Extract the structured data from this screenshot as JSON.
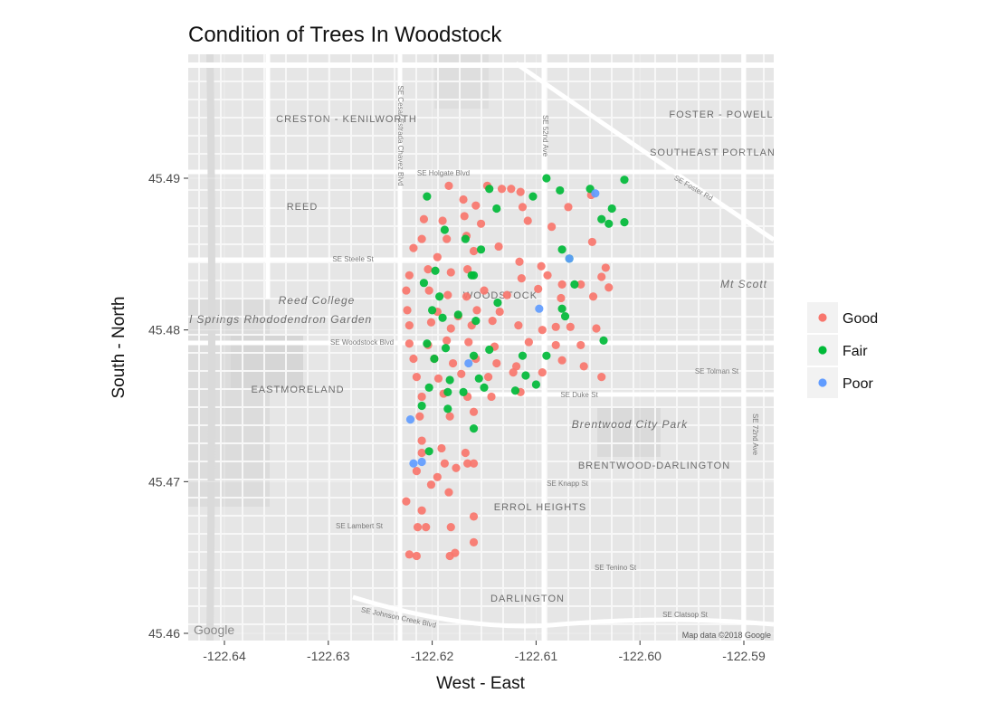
{
  "chart_data": {
    "type": "scatter",
    "title": "Condition of Trees In Woodstock",
    "xlabel": "West - East",
    "ylabel": "South - North",
    "xlim": [
      -122.64,
      -122.59
    ],
    "ylim": [
      45.46,
      45.4995
    ],
    "x_ticks": [
      "-122.64",
      "-122.63",
      "-122.62",
      "-122.61",
      "-122.60",
      "-122.59"
    ],
    "y_ticks": [
      "45.46",
      "45.47",
      "45.48",
      "45.49"
    ],
    "grid": true,
    "legend_position": "right",
    "background": "map",
    "map_attribution": "Map data ©2018 Google",
    "map_logo": "Google",
    "map_labels": {
      "neighborhoods": [
        "CRESTON - KENILWORTH",
        "FOSTER - POWELL",
        "SOUTHEAST PORTLAND",
        "REED",
        "WOODSTOCK",
        "EASTMORELAND",
        "BRENTWOOD-DARLINGTON",
        "ERROL HEIGHTS",
        "DARLINGTON"
      ],
      "places": [
        "Reed College",
        "Crystal Springs Rhododendron Garden",
        "Brentwood City Park",
        "Mt Scott"
      ],
      "streets": [
        "SE Holgate Blvd",
        "SE Steele St",
        "SE Woodstock Blvd",
        "SE Duke St",
        "SE Foster Rd",
        "SE Tolman St",
        "SE Knapp St",
        "SE Lambert St",
        "SE Tenino St",
        "SE Clatsop St",
        "SE Johnson Creek Blvd",
        "SE Cesar Estrada Chavez Blvd",
        "SE 52nd Ave",
        "SE 72nd Ave"
      ]
    },
    "series": [
      {
        "name": "Good",
        "color": "#F8766D",
        "points": [
          [
            -122.6184,
            45.4895
          ],
          [
            -122.6147,
            45.4895
          ],
          [
            -122.6133,
            45.4893
          ],
          [
            -122.6124,
            45.4893
          ],
          [
            -122.6115,
            45.4891
          ],
          [
            -122.617,
            45.4886
          ],
          [
            -122.6158,
            45.4882
          ],
          [
            -122.6113,
            45.4881
          ],
          [
            -122.6069,
            45.4881
          ],
          [
            -122.6047,
            45.4889
          ],
          [
            -122.6208,
            45.4873
          ],
          [
            -122.619,
            45.4872
          ],
          [
            -122.6169,
            45.4875
          ],
          [
            -122.6153,
            45.487
          ],
          [
            -122.6108,
            45.4872
          ],
          [
            -122.6085,
            45.4868
          ],
          [
            -122.6046,
            45.4858
          ],
          [
            -122.621,
            45.486
          ],
          [
            -122.6186,
            45.486
          ],
          [
            -122.6167,
            45.4862
          ],
          [
            -122.6136,
            45.4855
          ],
          [
            -122.6218,
            45.4854
          ],
          [
            -122.6195,
            45.4848
          ],
          [
            -122.616,
            45.4852
          ],
          [
            -122.6116,
            45.4845
          ],
          [
            -122.6095,
            45.4842
          ],
          [
            -122.6222,
            45.4836
          ],
          [
            -122.6204,
            45.484
          ],
          [
            -122.6182,
            45.4838
          ],
          [
            -122.6166,
            45.484
          ],
          [
            -122.6114,
            45.4834
          ],
          [
            -122.6089,
            45.4836
          ],
          [
            -122.6075,
            45.483
          ],
          [
            -122.6057,
            45.483
          ],
          [
            -122.6033,
            45.4841
          ],
          [
            -122.6037,
            45.4835
          ],
          [
            -122.603,
            45.4828
          ],
          [
            -122.6045,
            45.4822
          ],
          [
            -122.6225,
            45.4826
          ],
          [
            -122.6203,
            45.4826
          ],
          [
            -122.6185,
            45.4823
          ],
          [
            -122.6167,
            45.4822
          ],
          [
            -122.615,
            45.4826
          ],
          [
            -122.6128,
            45.4823
          ],
          [
            -122.6098,
            45.4827
          ],
          [
            -122.6076,
            45.4821
          ],
          [
            -122.6224,
            45.4813
          ],
          [
            -122.6195,
            45.4812
          ],
          [
            -122.6175,
            45.4809
          ],
          [
            -122.6157,
            45.4813
          ],
          [
            -122.6135,
            45.4812
          ],
          [
            -122.6222,
            45.4803
          ],
          [
            -122.6201,
            45.4805
          ],
          [
            -122.6182,
            45.4801
          ],
          [
            -122.6162,
            45.4803
          ],
          [
            -122.6142,
            45.4806
          ],
          [
            -122.6117,
            45.4803
          ],
          [
            -122.6094,
            45.48
          ],
          [
            -122.6081,
            45.4802
          ],
          [
            -122.6067,
            45.4802
          ],
          [
            -122.6042,
            45.4801
          ],
          [
            -122.6222,
            45.4791
          ],
          [
            -122.6204,
            45.479
          ],
          [
            -122.6186,
            45.4793
          ],
          [
            -122.6165,
            45.4792
          ],
          [
            -122.614,
            45.4789
          ],
          [
            -122.6107,
            45.4792
          ],
          [
            -122.6081,
            45.479
          ],
          [
            -122.6057,
            45.479
          ],
          [
            -122.6218,
            45.4781
          ],
          [
            -122.6198,
            45.4781
          ],
          [
            -122.618,
            45.4778
          ],
          [
            -122.6158,
            45.4781
          ],
          [
            -122.6138,
            45.4778
          ],
          [
            -122.6119,
            45.4776
          ],
          [
            -122.6075,
            45.478
          ],
          [
            -122.6054,
            45.4776
          ],
          [
            -122.6215,
            45.4769
          ],
          [
            -122.6194,
            45.4768
          ],
          [
            -122.6172,
            45.4771
          ],
          [
            -122.6146,
            45.4769
          ],
          [
            -122.6122,
            45.4772
          ],
          [
            -122.6094,
            45.4772
          ],
          [
            -122.6037,
            45.4769
          ],
          [
            -122.621,
            45.4756
          ],
          [
            -122.6189,
            45.4758
          ],
          [
            -122.6166,
            45.4756
          ],
          [
            -122.6143,
            45.4756
          ],
          [
            -122.6115,
            45.4759
          ],
          [
            -122.6212,
            45.4743
          ],
          [
            -122.6183,
            45.4743
          ],
          [
            -122.616,
            45.4746
          ],
          [
            -122.621,
            45.4727
          ],
          [
            -122.6191,
            45.4722
          ],
          [
            -122.6168,
            45.4719
          ],
          [
            -122.621,
            45.4719
          ],
          [
            -122.6188,
            45.4712
          ],
          [
            -122.6166,
            45.4712
          ],
          [
            -122.6215,
            45.4707
          ],
          [
            -122.6195,
            45.4703
          ],
          [
            -122.6177,
            45.4709
          ],
          [
            -122.616,
            45.4712
          ],
          [
            -122.6201,
            45.4698
          ],
          [
            -122.6184,
            45.4693
          ],
          [
            -122.6225,
            45.4687
          ],
          [
            -122.621,
            45.4681
          ],
          [
            -122.616,
            45.4677
          ],
          [
            -122.6182,
            45.467
          ],
          [
            -122.6214,
            45.467
          ],
          [
            -122.6206,
            45.467
          ],
          [
            -122.6222,
            45.4652
          ],
          [
            -122.6215,
            45.4651
          ],
          [
            -122.6183,
            45.4651
          ],
          [
            -122.6178,
            45.4653
          ],
          [
            -122.616,
            45.466
          ]
        ]
      },
      {
        "name": "Fair",
        "color": "#00BA38",
        "points": [
          [
            -122.6205,
            45.4888
          ],
          [
            -122.6145,
            45.4893
          ],
          [
            -122.6103,
            45.4888
          ],
          [
            -122.609,
            45.49
          ],
          [
            -122.6077,
            45.4892
          ],
          [
            -122.6048,
            45.4893
          ],
          [
            -122.6015,
            45.4899
          ],
          [
            -122.6027,
            45.488
          ],
          [
            -122.603,
            45.487
          ],
          [
            -122.6037,
            45.4873
          ],
          [
            -122.6015,
            45.4871
          ],
          [
            -122.6138,
            45.488
          ],
          [
            -122.6188,
            45.4866
          ],
          [
            -122.6168,
            45.486
          ],
          [
            -122.6153,
            45.4853
          ],
          [
            -122.6075,
            45.4853
          ],
          [
            -122.6068,
            45.4847
          ],
          [
            -122.6197,
            45.4839
          ],
          [
            -122.616,
            45.4836
          ],
          [
            -122.6162,
            45.4836
          ],
          [
            -122.6063,
            45.483
          ],
          [
            -122.6208,
            45.4831
          ],
          [
            -122.6193,
            45.4822
          ],
          [
            -122.6137,
            45.4818
          ],
          [
            -122.6175,
            45.481
          ],
          [
            -122.6158,
            45.4806
          ],
          [
            -122.62,
            45.4813
          ],
          [
            -122.619,
            45.4808
          ],
          [
            -122.6075,
            45.4814
          ],
          [
            -122.6072,
            45.4809
          ],
          [
            -122.6205,
            45.4791
          ],
          [
            -122.6187,
            45.4788
          ],
          [
            -122.6035,
            45.4793
          ],
          [
            -122.6198,
            45.4781
          ],
          [
            -122.616,
            45.4783
          ],
          [
            -122.6145,
            45.4787
          ],
          [
            -122.6113,
            45.4783
          ],
          [
            -122.609,
            45.4783
          ],
          [
            -122.6183,
            45.4767
          ],
          [
            -122.6155,
            45.4768
          ],
          [
            -122.611,
            45.477
          ],
          [
            -122.6203,
            45.4762
          ],
          [
            -122.6185,
            45.4759
          ],
          [
            -122.617,
            45.4759
          ],
          [
            -122.612,
            45.476
          ],
          [
            -122.615,
            45.4762
          ],
          [
            -122.61,
            45.4764
          ],
          [
            -122.621,
            45.475
          ],
          [
            -122.6185,
            45.4748
          ],
          [
            -122.616,
            45.4735
          ],
          [
            -122.6203,
            45.472
          ]
        ]
      },
      {
        "name": "Poor",
        "color": "#619CFF",
        "points": [
          [
            -122.6043,
            45.489
          ],
          [
            -122.6068,
            45.4847
          ],
          [
            -122.6097,
            45.4814
          ],
          [
            -122.6165,
            45.4778
          ],
          [
            -122.6221,
            45.4741
          ],
          [
            -122.621,
            45.4713
          ],
          [
            -122.6218,
            45.4712
          ]
        ]
      }
    ]
  }
}
